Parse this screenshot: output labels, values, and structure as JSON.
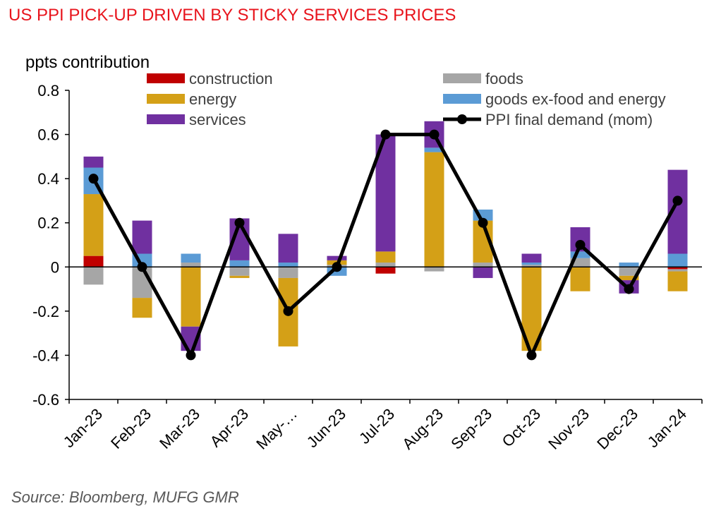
{
  "title": "US PPI PICK-UP DRIVEN BY STICKY SERVICES PRICES",
  "source": "Source: Bloomberg, MUFG GMR",
  "chart_data": {
    "type": "bar",
    "stacked": true,
    "ylabel": "ppts contribution",
    "ylim": [
      -0.6,
      0.8
    ],
    "yticks": [
      -0.6,
      -0.4,
      -0.2,
      0,
      0.2,
      0.4,
      0.6,
      0.8
    ],
    "ytick_labels": [
      "-0.6",
      "-0.4",
      "-0.2",
      "0",
      "0.2",
      "0.4",
      "0.6",
      "0.8"
    ],
    "categories": [
      "Jan-23",
      "Feb-23",
      "Mar-23",
      "Apr-23",
      "May-…",
      "Jun-23",
      "Jul-23",
      "Aug-23",
      "Sep-23",
      "Oct-23",
      "Nov-23",
      "Dec-23",
      "Jan-24"
    ],
    "legend_position": "top",
    "series": [
      {
        "name": "construction",
        "color": "#c00000",
        "values": [
          0.05,
          0,
          0,
          0,
          0,
          0,
          -0.03,
          0,
          0,
          0,
          0,
          0,
          -0.01
        ]
      },
      {
        "name": "foods",
        "color": "#a6a6a6",
        "values": [
          -0.08,
          -0.14,
          0.02,
          -0.04,
          -0.05,
          0.01,
          0.02,
          -0.02,
          0.02,
          0.01,
          0.04,
          -0.04,
          -0.01
        ]
      },
      {
        "name": "energy",
        "color": "#d4a017",
        "values": [
          0.28,
          -0.09,
          -0.27,
          -0.01,
          -0.31,
          0.02,
          0.05,
          0.52,
          0.19,
          -0.38,
          -0.11,
          -0.02,
          -0.09
        ]
      },
      {
        "name": "goods ex-food and energy",
        "color": "#5b9bd5",
        "values": [
          0.12,
          0.06,
          0.04,
          0.03,
          0.02,
          -0.04,
          0.0,
          0.02,
          0.05,
          0.01,
          0.03,
          0.02,
          0.06
        ]
      },
      {
        "name": "services",
        "color": "#7030a0",
        "values": [
          0.05,
          0.15,
          -0.11,
          0.19,
          0.13,
          0.02,
          0.53,
          0.12,
          -0.05,
          0.04,
          0.11,
          -0.06,
          0.38
        ]
      }
    ],
    "line": {
      "name": "PPI final demand (mom)",
      "color": "#000000",
      "values": [
        0.4,
        0.0,
        -0.4,
        0.2,
        -0.2,
        0.0,
        0.6,
        0.6,
        0.2,
        -0.4,
        0.1,
        -0.1,
        0.3
      ]
    }
  }
}
